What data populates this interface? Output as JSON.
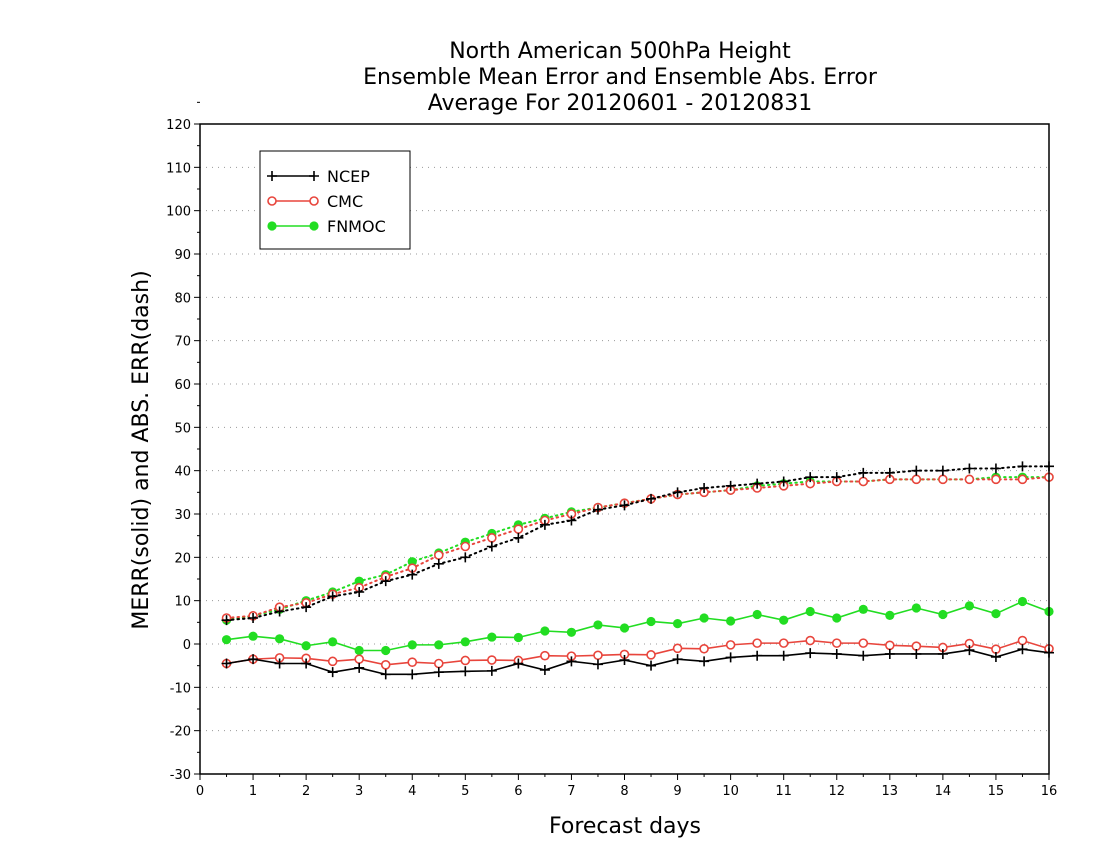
{
  "chart_data": {
    "type": "line",
    "title": [
      "North American 500hPa Height",
      "Ensemble Mean Error and Ensemble Abs. Error",
      "Average For 20120601 - 20120831"
    ],
    "xlabel": "Forecast days",
    "ylabel": "MERR(solid) and ABS. ERR(dash)",
    "xlim": [
      0,
      16
    ],
    "ylim": [
      -30,
      120
    ],
    "xticks": [
      "0",
      "1",
      "2",
      "3",
      "4",
      "5",
      "6",
      "7",
      "8",
      "9",
      "10",
      "11",
      "12",
      "13",
      "14",
      "15",
      "16"
    ],
    "yticks": [
      "-30",
      "-20",
      "-10",
      "0",
      "10",
      "20",
      "30",
      "40",
      "50",
      "60",
      "70",
      "80",
      "90",
      "100",
      "110",
      "120"
    ],
    "grid": "horizontal dotted",
    "legend_position": "top-left",
    "x": [
      0.5,
      1,
      1.5,
      2,
      2.5,
      3,
      3.5,
      4,
      4.5,
      5,
      5.5,
      6,
      6.5,
      7,
      7.5,
      8,
      8.5,
      9,
      9.5,
      10,
      10.5,
      11,
      11.5,
      12,
      12.5,
      13,
      13.5,
      14,
      14.5,
      15,
      15.5,
      16
    ],
    "series": [
      {
        "name": "NCEP",
        "color": "#000000",
        "marker": "plus",
        "merr": [
          -4.5,
          -3.5,
          -4.5,
          -4.5,
          -6.5,
          -5.5,
          -7,
          -7,
          -6.5,
          -6.3,
          -6.2,
          -4.5,
          -6,
          -4,
          -4.7,
          -3.7,
          -5,
          -3.5,
          -4,
          -3.1,
          -2.7,
          -2.7,
          -2.1,
          -2.3,
          -2.7,
          -2.3,
          -2.3,
          -2.3,
          -1.4,
          -3,
          -1.2,
          -2
        ],
        "abs_err": [
          5.5,
          6,
          7.5,
          8.5,
          11,
          12,
          14.5,
          16,
          18.5,
          20,
          22.5,
          24.5,
          27.5,
          28.5,
          31,
          32,
          33.5,
          35,
          36,
          36.5,
          37,
          37.5,
          38.5,
          38.5,
          39.5,
          39.5,
          40,
          40,
          40.5,
          40.5,
          41,
          41
        ]
      },
      {
        "name": "CMC",
        "color": "#e8453c",
        "marker": "open-circle",
        "merr": [
          -4.5,
          -3.5,
          -3.2,
          -3.3,
          -4,
          -3.5,
          -4.8,
          -4.2,
          -4.5,
          -3.8,
          -3.7,
          -3.8,
          -2.7,
          -2.8,
          -2.6,
          -2.4,
          -2.5,
          -1,
          -1.1,
          -0.2,
          0.2,
          0.2,
          0.8,
          0.2,
          0.2,
          -0.3,
          -0.5,
          -0.8,
          0.1,
          -1.2,
          0.8,
          -1.1
        ],
        "abs_err": [
          6,
          6.5,
          8.5,
          9.5,
          11.5,
          13,
          15.5,
          17.5,
          20.5,
          22.5,
          24.5,
          26.5,
          28.5,
          30,
          31.5,
          32.5,
          33.5,
          34.5,
          35,
          35.5,
          36,
          36.5,
          37,
          37.5,
          37.5,
          38,
          38,
          38,
          38,
          38,
          38,
          38.5
        ]
      },
      {
        "name": "FNMOC",
        "color": "#22dd22",
        "marker": "filled-circle",
        "merr": [
          1,
          1.8,
          1.2,
          -0.4,
          0.5,
          -1.5,
          -1.5,
          -0.2,
          -0.2,
          0.5,
          1.6,
          1.5,
          3,
          2.7,
          4.4,
          3.7,
          5.2,
          4.7,
          6,
          5.3,
          6.8,
          5.5,
          7.5,
          6,
          8,
          6.6,
          8.3,
          6.8,
          8.8,
          7,
          9.8,
          7.5
        ],
        "abs_err": [
          5.5,
          6.5,
          8,
          10,
          12,
          14.5,
          16,
          19,
          21,
          23.5,
          25.5,
          27.5,
          29,
          30.5,
          31.5,
          32.5,
          33.5,
          34.5,
          35,
          35.5,
          36.5,
          37,
          37.5,
          37.5,
          37.5,
          38,
          38,
          38,
          38,
          38.5,
          38.5,
          38.5
        ]
      }
    ]
  }
}
